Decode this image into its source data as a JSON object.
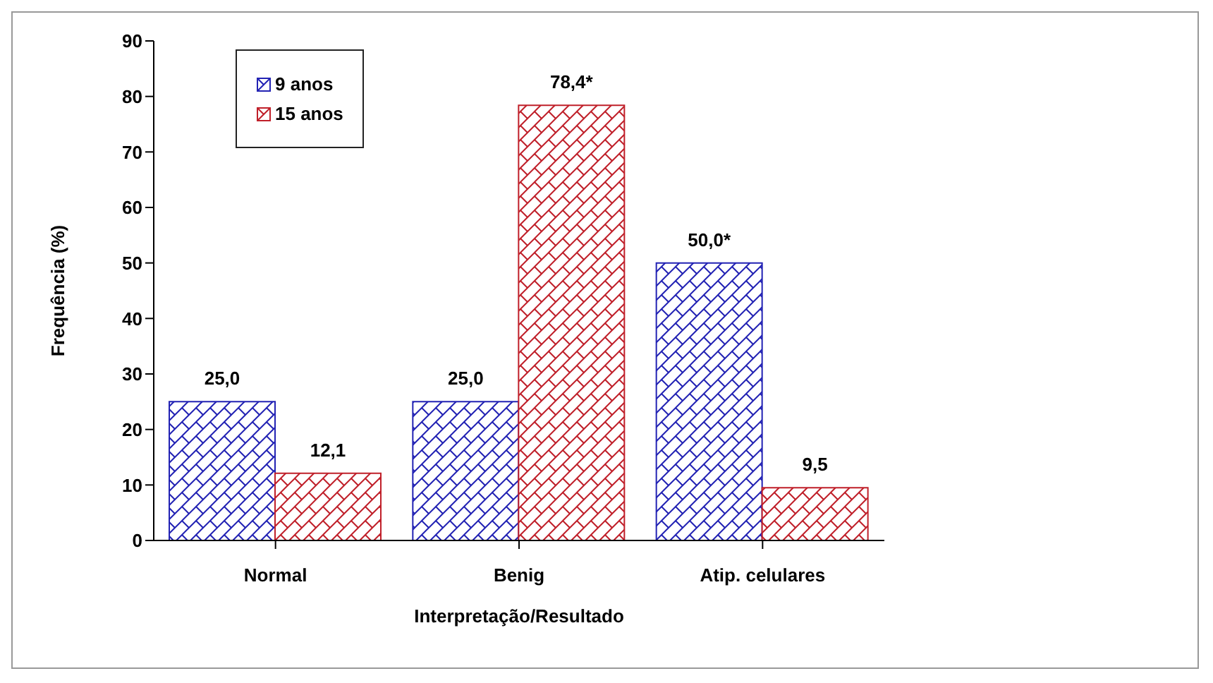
{
  "chart_data": {
    "type": "bar",
    "xlabel": "Interpretação/Resultado",
    "ylabel": "Frequência (%)",
    "categories": [
      "Normal",
      "Benig",
      "Atip. celulares"
    ],
    "series": [
      {
        "name": "9 anos",
        "color": "#2323b4",
        "values": [
          25.0,
          25.0,
          50.0
        ],
        "value_labels": [
          "25,0",
          "25,0",
          "50,0*"
        ]
      },
      {
        "name": "15 anos",
        "color": "#c0202a",
        "values": [
          12.1,
          78.4,
          9.5
        ],
        "value_labels": [
          "12,1",
          "78,4*",
          "9,5"
        ]
      }
    ],
    "ylim": [
      0,
      90
    ],
    "yticks": [
      0,
      10,
      20,
      30,
      40,
      50,
      60,
      70,
      80,
      90
    ],
    "grid": false,
    "legend": "top left"
  }
}
